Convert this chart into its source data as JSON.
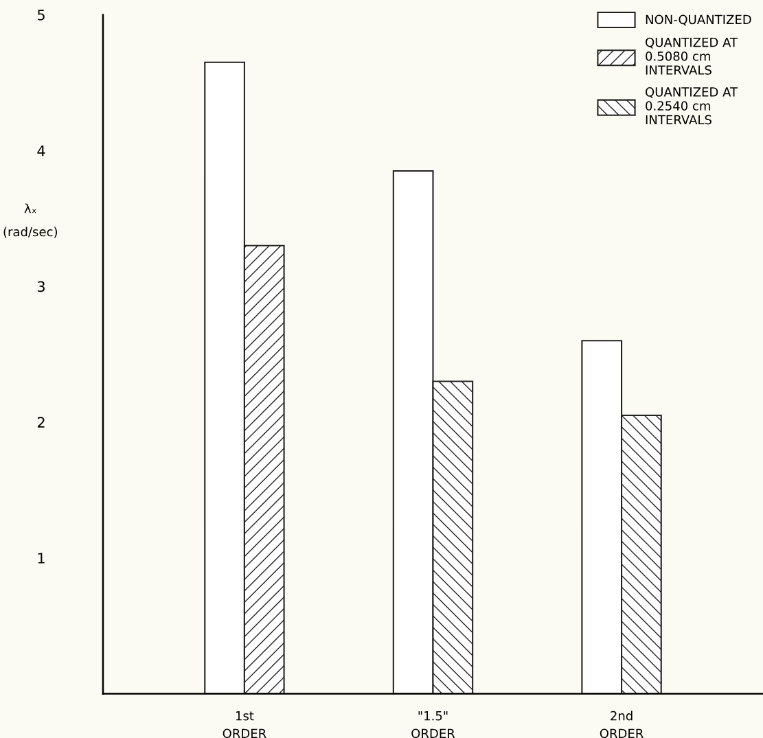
{
  "chart_data": {
    "type": "bar",
    "ylabel": "λₓ\n(rad/sec)",
    "categories": [
      "1st\nORDER",
      "\"1.5\"\nORDER",
      "2nd\nORDER"
    ],
    "series": [
      {
        "name": "NON-QUANTIZED",
        "color": "#ffffff",
        "values": [
          4.65,
          3.85,
          2.6
        ]
      },
      {
        "name": "QUANTIZED AT\n0.5080 cm\nINTERVALS",
        "color": "#222222",
        "values": [
          3.3,
          null,
          null
        ]
      },
      {
        "name": "QUANTIZED AT\n0.2540 cm\nINTERVALS",
        "color": "#222222",
        "values": [
          null,
          2.3,
          2.05
        ]
      }
    ],
    "ylim": [
      0,
      5
    ],
    "yticks": [
      1,
      2,
      3,
      4,
      5
    ],
    "legend": "top right"
  }
}
